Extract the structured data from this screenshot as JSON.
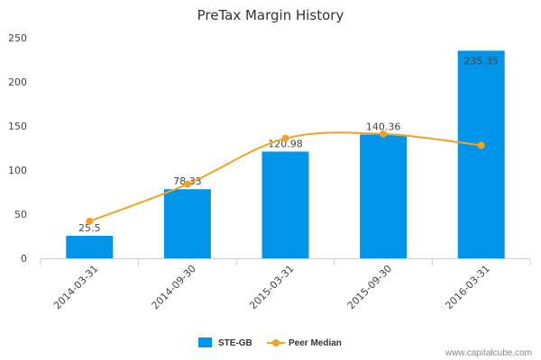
{
  "chart_data": {
    "type": "bar",
    "title": "PreTax Margin History",
    "xlabel": "",
    "ylabel": "",
    "categories": [
      "2014-03-31",
      "2014-09-30",
      "2015-03-31",
      "2015-09-30",
      "2016-03-31"
    ],
    "series": [
      {
        "name": "STE-GB",
        "type": "bar",
        "color": "#0095e8",
        "values": [
          25.5,
          78.33,
          120.98,
          140.36,
          235.35
        ],
        "labels": [
          "25.5",
          "78.33",
          "120.98",
          "140.36",
          "235.35"
        ]
      },
      {
        "name": "Peer Median",
        "type": "line",
        "color": "#f5a21f",
        "values": [
          42,
          84,
          136,
          141,
          128
        ]
      }
    ],
    "ylim": [
      0,
      250
    ],
    "yticks": [
      0,
      50,
      100,
      150,
      200,
      250
    ],
    "grid": false,
    "legend": "bottom-center"
  },
  "credit": "www.capitalcube.com"
}
